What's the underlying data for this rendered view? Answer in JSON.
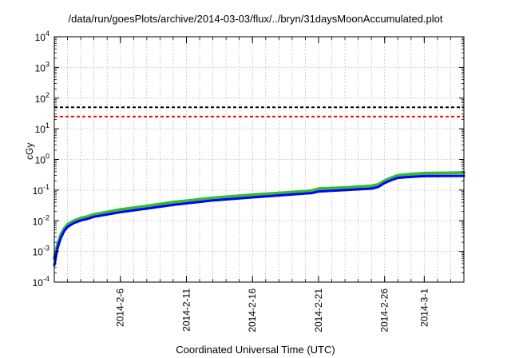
{
  "chart_data": {
    "type": "line",
    "title": "/data/run/goesPlots/archive/2014-03-03/flux/../bryn/31daysMoonAccumulated.plot",
    "xlabel": "Coordinated Universal Time (UTC)",
    "ylabel": "cGy",
    "xlim": [
      "2014-02-01",
      "2014-03-04"
    ],
    "ylim": [
      0.0001,
      10000
    ],
    "yscale": "log",
    "grid": true,
    "x_ticks": [
      "2014-2-6",
      "2014-2-11",
      "2014-2-16",
      "2014-2-21",
      "2014-2-26",
      "2014-3-1"
    ],
    "y_ticks": [
      {
        "value": 0.0001,
        "base": "10",
        "exp": "-4"
      },
      {
        "value": 0.001,
        "base": "10",
        "exp": "-3"
      },
      {
        "value": 0.01,
        "base": "10",
        "exp": "-2"
      },
      {
        "value": 0.1,
        "base": "10",
        "exp": "-1"
      },
      {
        "value": 1,
        "base": "10",
        "exp": "0"
      },
      {
        "value": 10,
        "base": "10",
        "exp": "1"
      },
      {
        "value": 100,
        "base": "10",
        "exp": "2"
      },
      {
        "value": 1000,
        "base": "10",
        "exp": "3"
      },
      {
        "value": 10000,
        "base": "10",
        "exp": "4"
      }
    ],
    "thresholds": [
      {
        "value": 50,
        "color": "#000000",
        "style": "dashed"
      },
      {
        "value": 25,
        "color": "#ff0000",
        "style": "dashed"
      }
    ],
    "series": [
      {
        "color": "#33bb33",
        "x": [
          "2014-02-01T00:00",
          "2014-02-01T06:00",
          "2014-02-01T12:00",
          "2014-02-01T18:00",
          "2014-02-02T00:00",
          "2014-02-02T12:00",
          "2014-02-03T00:00",
          "2014-02-03T12:00",
          "2014-02-04T00:00",
          "2014-02-05T00:00",
          "2014-02-06T00:00",
          "2014-02-08T00:00",
          "2014-02-10T00:00",
          "2014-02-13T00:00",
          "2014-02-16T00:00",
          "2014-02-19T00:00",
          "2014-02-20T12:00",
          "2014-02-21T00:00",
          "2014-02-23T00:00",
          "2014-02-25T00:00",
          "2014-02-25T12:00",
          "2014-02-26T00:00",
          "2014-02-26T12:00",
          "2014-02-27T00:00",
          "2014-02-28T00:00",
          "2014-03-01T00:00",
          "2014-03-04T00:00"
        ],
        "values": [
          0.0006,
          0.0017,
          0.0035,
          0.0055,
          0.0075,
          0.01,
          0.012,
          0.0135,
          0.016,
          0.019,
          0.023,
          0.03,
          0.04,
          0.055,
          0.07,
          0.085,
          0.095,
          0.11,
          0.12,
          0.135,
          0.15,
          0.2,
          0.25,
          0.3,
          0.33,
          0.35,
          0.37
        ]
      },
      {
        "color": "#0000ff",
        "x": [
          "2014-02-01T00:00",
          "2014-02-01T06:00",
          "2014-02-01T12:00",
          "2014-02-01T18:00",
          "2014-02-02T00:00",
          "2014-02-02T12:00",
          "2014-02-03T00:00",
          "2014-02-03T12:00",
          "2014-02-04T00:00",
          "2014-02-05T00:00",
          "2014-02-06T00:00",
          "2014-02-08T00:00",
          "2014-02-10T00:00",
          "2014-02-13T00:00",
          "2014-02-16T00:00",
          "2014-02-19T00:00",
          "2014-02-20T12:00",
          "2014-02-21T00:00",
          "2014-02-23T00:00",
          "2014-02-25T00:00",
          "2014-02-25T12:00",
          "2014-02-26T00:00",
          "2014-02-26T12:00",
          "2014-02-27T00:00",
          "2014-02-28T00:00",
          "2014-03-01T00:00",
          "2014-03-04T00:00"
        ],
        "values": [
          0.00035,
          0.0013,
          0.0028,
          0.0046,
          0.0063,
          0.0085,
          0.0102,
          0.0115,
          0.0135,
          0.016,
          0.019,
          0.025,
          0.033,
          0.046,
          0.058,
          0.072,
          0.08,
          0.09,
          0.1,
          0.112,
          0.125,
          0.17,
          0.21,
          0.25,
          0.27,
          0.285,
          0.29
        ]
      }
    ]
  }
}
